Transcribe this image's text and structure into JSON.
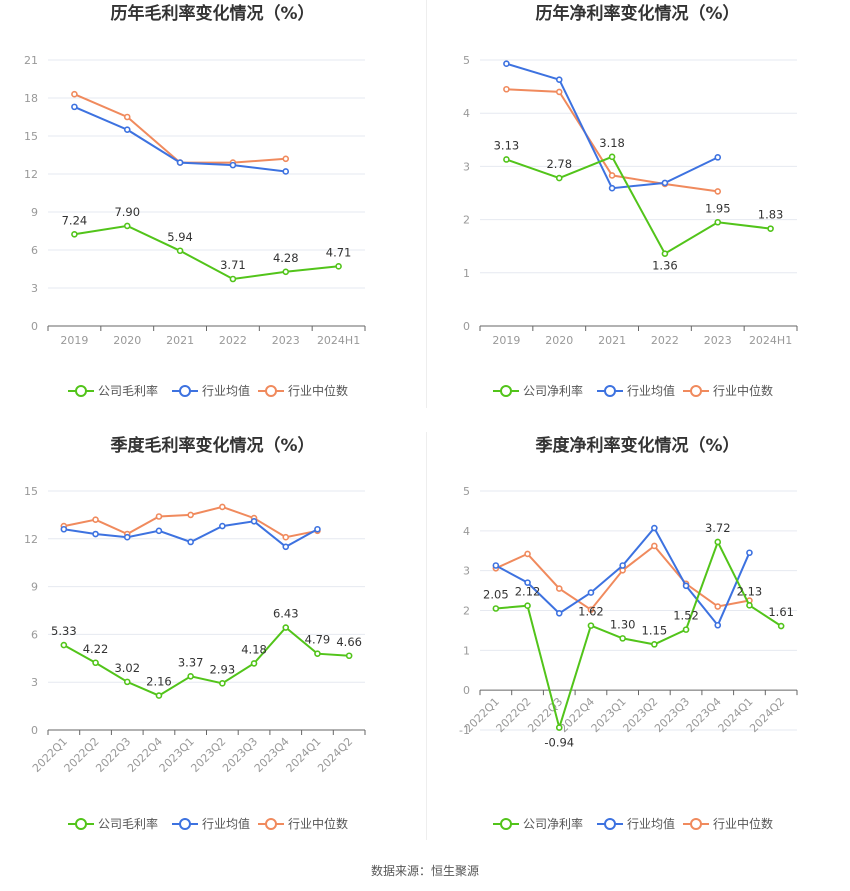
{
  "colors": {
    "company": "#52c41a",
    "avg": "#3d72e0",
    "median": "#f08a5d"
  },
  "source_text": "数据来源：恒生聚源",
  "chart_data": [
    {
      "type": "line",
      "title": "历年毛利率变化情况（%）",
      "categories": [
        "2019",
        "2020",
        "2021",
        "2022",
        "2023",
        "2024H1"
      ],
      "yticks": [
        0,
        3,
        6,
        9,
        12,
        15,
        18,
        21
      ],
      "ylim": [
        0,
        21
      ],
      "series": [
        {
          "name": "公司毛利率",
          "key": "company",
          "labels": true,
          "values": [
            7.24,
            7.9,
            5.94,
            3.71,
            4.28,
            4.71
          ],
          "label_text": [
            "7.24",
            "7.90",
            "5.94",
            "3.71",
            "4.28",
            "4.71"
          ]
        },
        {
          "name": "行业均值",
          "key": "avg",
          "values": [
            17.3,
            15.5,
            12.9,
            12.7,
            12.2,
            null
          ]
        },
        {
          "name": "行业中位数",
          "key": "median",
          "values": [
            18.3,
            16.5,
            12.9,
            12.9,
            13.2,
            null
          ]
        }
      ]
    },
    {
      "type": "line",
      "title": "历年净利率变化情况（%）",
      "categories": [
        "2019",
        "2020",
        "2021",
        "2022",
        "2023",
        "2024H1"
      ],
      "yticks": [
        0,
        1,
        2,
        3,
        4,
        5
      ],
      "ylim": [
        0,
        5
      ],
      "series": [
        {
          "name": "公司净利率",
          "key": "company",
          "labels": true,
          "values": [
            3.13,
            2.78,
            3.18,
            1.36,
            1.95,
            1.83
          ],
          "label_text": [
            "3.13",
            "2.78",
            "3.18",
            "1.36",
            "1.95",
            "1.83"
          ]
        },
        {
          "name": "行业均值",
          "key": "avg",
          "values": [
            4.93,
            4.63,
            2.59,
            2.69,
            3.17,
            null
          ]
        },
        {
          "name": "行业中位数",
          "key": "median",
          "values": [
            4.45,
            4.4,
            2.83,
            2.67,
            2.53,
            null
          ]
        }
      ]
    },
    {
      "type": "line",
      "title": "季度毛利率变化情况（%）",
      "categories": [
        "2022Q1",
        "2022Q2",
        "2022Q3",
        "2022Q4",
        "2023Q1",
        "2023Q2",
        "2023Q3",
        "2023Q4",
        "2024Q1",
        "2024Q2"
      ],
      "yticks": [
        0,
        3,
        6,
        9,
        12,
        15
      ],
      "ylim": [
        0,
        15
      ],
      "rotate_x": true,
      "series": [
        {
          "name": "公司毛利率",
          "key": "company",
          "labels": true,
          "values": [
            5.33,
            4.22,
            3.02,
            2.16,
            3.37,
            2.93,
            4.18,
            6.43,
            4.79,
            4.66
          ],
          "label_text": [
            "5.33",
            "4.22",
            "3.02",
            "2.16",
            "3.37",
            "2.93",
            "4.18",
            "6.43",
            "4.79",
            "4.66"
          ]
        },
        {
          "name": "行业均值",
          "key": "avg",
          "values": [
            12.6,
            12.3,
            12.1,
            12.5,
            11.8,
            12.8,
            13.1,
            11.5,
            12.6,
            null
          ]
        },
        {
          "name": "行业中位数",
          "key": "median",
          "values": [
            12.8,
            13.2,
            12.3,
            13.4,
            13.5,
            14.0,
            13.3,
            12.1,
            12.5,
            null
          ]
        }
      ]
    },
    {
      "type": "line",
      "title": "季度净利率变化情况（%）",
      "categories": [
        "2022Q1",
        "2022Q2",
        "2022Q3",
        "2022Q4",
        "2023Q1",
        "2023Q2",
        "2023Q3",
        "2023Q4",
        "2024Q1",
        "2024Q2"
      ],
      "yticks": [
        -1,
        0,
        1,
        2,
        3,
        4,
        5
      ],
      "ylim": [
        -1,
        5
      ],
      "rotate_x": true,
      "series": [
        {
          "name": "公司净利率",
          "key": "company",
          "labels": true,
          "values": [
            2.05,
            2.12,
            -0.94,
            1.62,
            1.3,
            1.15,
            1.52,
            3.72,
            2.13,
            1.61
          ],
          "label_text": [
            "2.05",
            "2.12",
            "-0.94",
            "1.62",
            "1.30",
            "1.15",
            "1.52",
            "3.72",
            "2.13",
            "1.61"
          ]
        },
        {
          "name": "行业均值",
          "key": "avg",
          "values": [
            3.13,
            2.7,
            1.93,
            2.45,
            3.13,
            4.07,
            2.62,
            1.63,
            3.45,
            null
          ]
        },
        {
          "name": "行业中位数",
          "key": "median",
          "values": [
            3.06,
            3.42,
            2.55,
            2.02,
            3.01,
            3.62,
            2.67,
            2.1,
            2.25,
            null
          ]
        }
      ]
    }
  ]
}
